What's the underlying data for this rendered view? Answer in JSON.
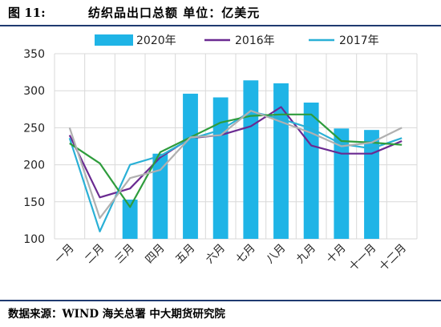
{
  "figure": {
    "label": "图 11:",
    "title": "纺织品出口总额 单位：亿美元",
    "source": "数据来源：WIND 海关总署 中大期货研究院"
  },
  "colors": {
    "bar_2020": "#1fb4e6",
    "line_2016": "#6a2a91",
    "line_2017": "#2ab0d6",
    "line_green": "#2e9c3c",
    "line_grey": "#b0b0b0",
    "grid": "#d9d9d9"
  },
  "chart_data": {
    "type": "bar",
    "categories": [
      "一月",
      "二月",
      "三月",
      "四月",
      "五月",
      "六月",
      "七月",
      "八月",
      "九月",
      "十月",
      "十一月",
      "十二月"
    ],
    "ylim": [
      100,
      350
    ],
    "yticks": [
      100,
      150,
      200,
      250,
      300,
      350
    ],
    "grid": true,
    "legend_position": "top",
    "series": [
      {
        "name": "2020年",
        "type": "bar",
        "color_key": "bar_2020",
        "values": [
          null,
          null,
          153,
          215,
          296,
          291,
          314,
          310,
          284,
          249,
          247,
          null
        ]
      },
      {
        "name": "2016年",
        "type": "line",
        "color_key": "line_2016",
        "values": [
          240,
          156,
          168,
          210,
          236,
          240,
          252,
          278,
          226,
          215,
          215,
          232
        ]
      },
      {
        "name": "2017年",
        "type": "line",
        "color_key": "line_2017",
        "values": [
          236,
          110,
          200,
          212,
          235,
          247,
          272,
          262,
          249,
          228,
          222,
          236
        ]
      },
      {
        "name": "",
        "type": "line",
        "color_key": "line_green",
        "values": [
          229,
          202,
          143,
          217,
          237,
          257,
          266,
          268,
          268,
          232,
          230,
          227
        ]
      },
      {
        "name": "",
        "type": "line",
        "color_key": "line_grey",
        "values": [
          250,
          128,
          182,
          193,
          237,
          240,
          273,
          258,
          243,
          225,
          230,
          250
        ]
      }
    ]
  }
}
